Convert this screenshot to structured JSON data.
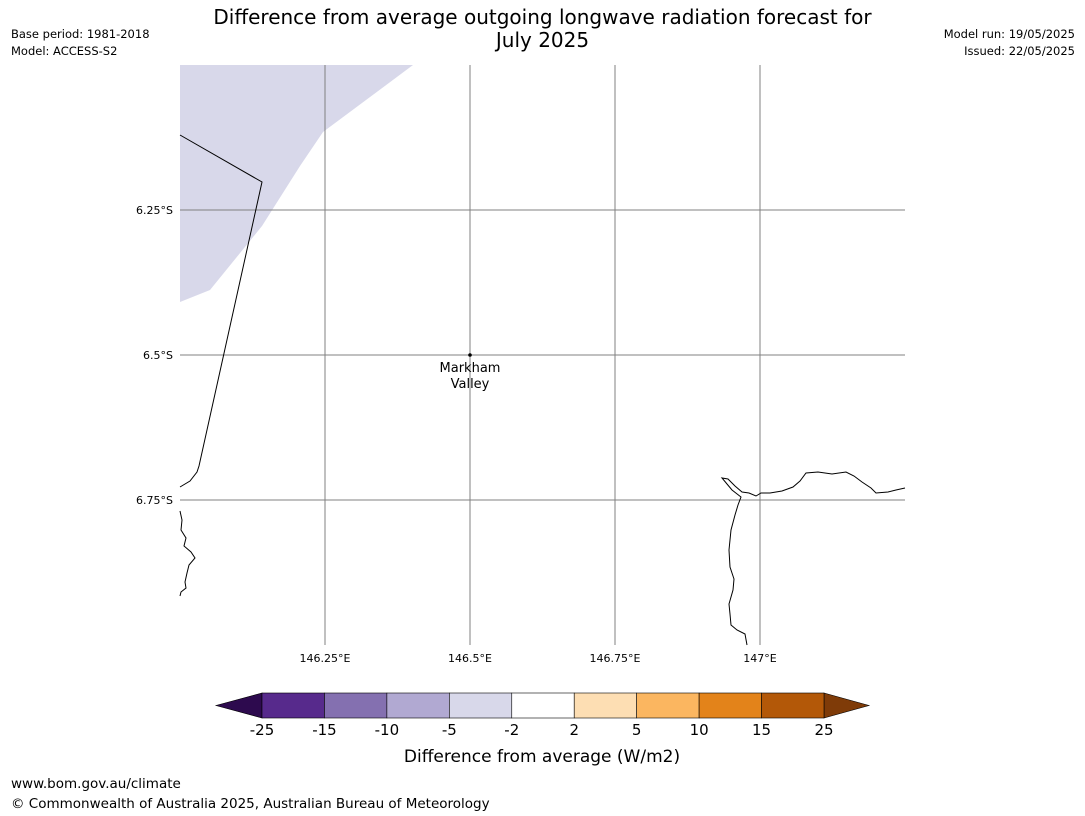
{
  "title": "Difference from average outgoing longwave radiation forecast for July 2025",
  "title_lines": [
    "Difference from average outgoing longwave radiation forecast for",
    "July 2025"
  ],
  "info_left": {
    "base_period": "Base period: 1981-2018",
    "model": "Model: ACCESS-S2"
  },
  "info_right": {
    "model_run": "Model run: 19/05/2025",
    "issued": "Issued: 22/05/2025"
  },
  "map": {
    "lon_range": [
      146.0,
      147.25
    ],
    "lat_range": [
      -7.0,
      -6.0
    ],
    "lon_ticks": [
      {
        "value": 146.25,
        "label": "146.25°E"
      },
      {
        "value": 146.5,
        "label": "146.5°E"
      },
      {
        "value": 146.75,
        "label": "146.75°E"
      },
      {
        "value": 147.0,
        "label": "147°E"
      }
    ],
    "lat_ticks": [
      {
        "value": -6.25,
        "label": "6.25°S"
      },
      {
        "value": -6.5,
        "label": "6.5°S"
      },
      {
        "value": -6.75,
        "label": "6.75°S"
      }
    ],
    "place": {
      "name_lines": [
        "Markham",
        "Valley"
      ],
      "lon": 146.5,
      "lat": -6.5
    },
    "shaded_region_color": "#d8d8ea",
    "grid_color": "#808080"
  },
  "colorbar": {
    "label": "Difference from average (W/m2)",
    "tick_labels": [
      "-25",
      "-15",
      "-10",
      "-5",
      "-2",
      "2",
      "5",
      "10",
      "15",
      "25"
    ],
    "colors": [
      "#572a8c",
      "#8470b0",
      "#b1a9d2",
      "#d8d8ea",
      "#ffffff",
      "#fddeb3",
      "#fbb660",
      "#e3831a",
      "#b35808"
    ],
    "under_color": "#2d0a4e",
    "over_color": "#7f3b08"
  },
  "footer": {
    "url": "www.bom.gov.au/climate",
    "copyright": "© Commonwealth of Australia 2025, Australian Bureau of Meteorology"
  }
}
